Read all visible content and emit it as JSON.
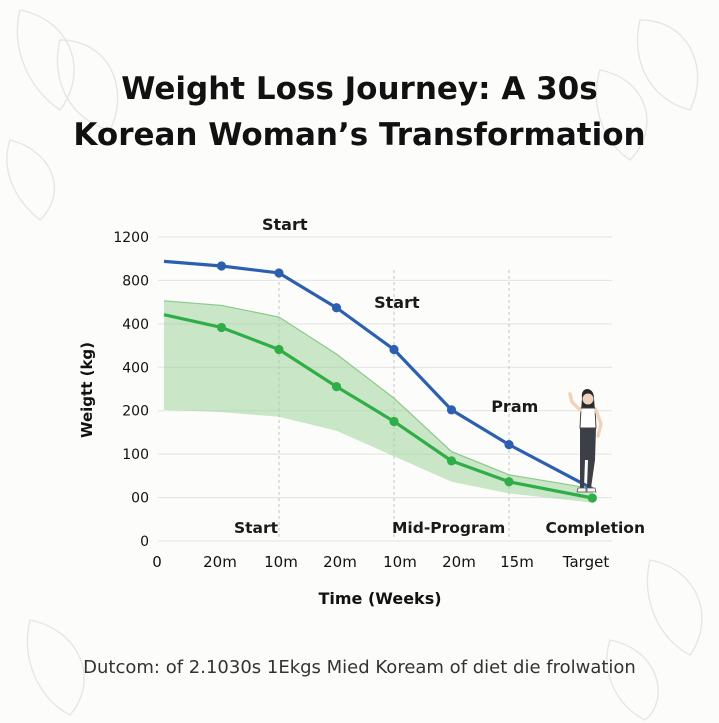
{
  "chart_data": {
    "type": "line",
    "title_line1": "Weight Loss Journey: A 30s",
    "title_line2": "Korean Woman’s Transformation",
    "xlabel": "Time (Weeks)",
    "ylabel": "Weigtt (kg)",
    "categories": [
      "0",
      "20m",
      "10m",
      "20m",
      "10m",
      "20m",
      "15m",
      "Target"
    ],
    "y_tick_labels": [
      "1200",
      "800",
      "400",
      "400",
      "200",
      "100",
      "00",
      "0"
    ],
    "series": [
      {
        "color": "#2c5fb0",
        "x": [
          0,
          1,
          2,
          3,
          4,
          5,
          6,
          7.45
        ],
        "values": [
          1020,
          1000,
          970,
          820,
          640,
          380,
          230,
          40
        ],
        "markers": [
          1,
          2,
          3,
          4,
          5,
          6
        ]
      },
      {
        "color": "#2fae47",
        "x": [
          0,
          1,
          2,
          3,
          4,
          5,
          6,
          7.45
        ],
        "values": [
          790,
          735,
          640,
          480,
          330,
          160,
          70,
          0
        ],
        "markers": [
          1,
          2,
          3,
          4,
          5,
          6,
          7
        ]
      }
    ],
    "band": {
      "color": "#9fd49c",
      "x": [
        0,
        1,
        2,
        3,
        4,
        5,
        6,
        7.45
      ],
      "upper": [
        850,
        830,
        780,
        620,
        430,
        200,
        100,
        40
      ],
      "lower": [
        380,
        370,
        350,
        290,
        180,
        70,
        20,
        -20
      ]
    },
    "annotations": [
      {
        "text": "Start",
        "x": 2.1,
        "y": 1155
      },
      {
        "text": "Start",
        "x": 4.05,
        "y": 820
      },
      {
        "text": "Pram",
        "x": 6.1,
        "y": 370
      }
    ],
    "phase_labels": [
      {
        "text": "Start",
        "x": 1.6
      },
      {
        "text": "Mid-Program",
        "x": 4.95
      },
      {
        "text": "Completion",
        "x": 7.5
      }
    ],
    "vlines_x": [
      2,
      4,
      6
    ],
    "grid": true
  },
  "footer": {
    "text": "Dutcom: of 2.1030s 1Ekgs Mied Koream of diet die frolwation"
  }
}
